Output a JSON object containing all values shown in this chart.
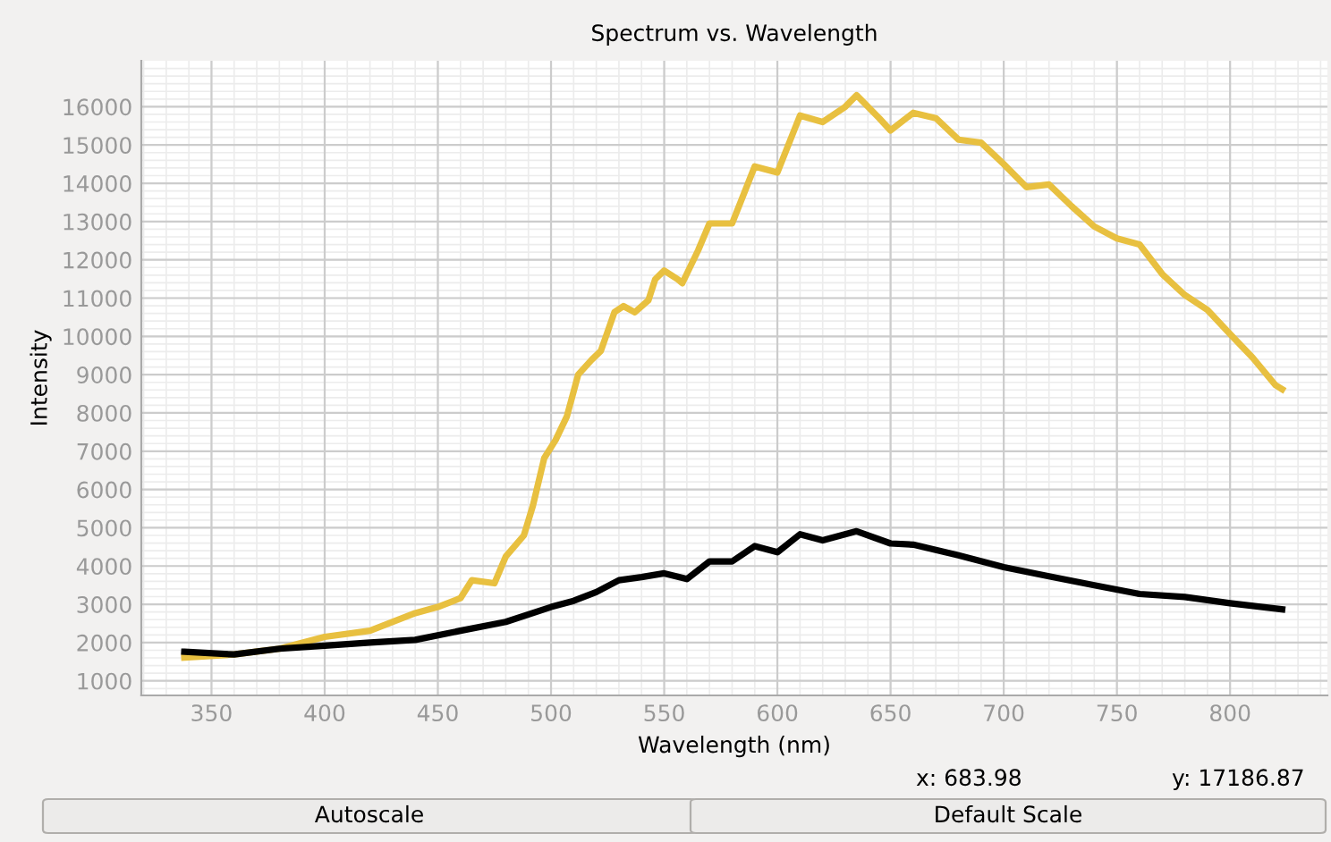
{
  "chart_data": {
    "type": "line",
    "title": "Spectrum vs. Wavelength",
    "xlabel": "Wavelength (nm)",
    "ylabel": "Intensity",
    "xlim": [
      319,
      843
    ],
    "ylim": [
      620,
      17200
    ],
    "xticks": [
      350,
      400,
      450,
      500,
      550,
      600,
      650,
      700,
      750,
      800
    ],
    "yticks": [
      1000,
      2000,
      3000,
      4000,
      5000,
      6000,
      7000,
      8000,
      9000,
      10000,
      11000,
      12000,
      13000,
      14000,
      15000,
      16000
    ],
    "grid": true,
    "legend": false,
    "marker": "none",
    "line_style": "solid",
    "annotations": [
      "x: 683.98",
      "y: 17186.87",
      "Autoscale",
      "Default Scale"
    ],
    "series": [
      {
        "color": "#e8c040",
        "x": [
          338,
          360,
          380,
          400,
          420,
          440,
          450,
          460,
          465,
          475,
          480,
          488,
          492,
          497,
          502,
          507,
          512,
          518,
          522,
          528,
          532,
          537,
          543,
          546,
          550,
          556,
          558,
          565,
          570,
          580,
          590,
          600,
          610,
          620,
          630,
          635,
          645,
          650,
          660,
          670,
          680,
          690,
          700,
          710,
          720,
          730,
          740,
          750,
          760,
          770,
          780,
          790,
          800,
          810,
          820,
          823
        ],
        "values": [
          1610,
          1690,
          1840,
          2150,
          2310,
          2770,
          2930,
          3160,
          3630,
          3550,
          4250,
          4800,
          5580,
          6820,
          7290,
          7910,
          9000,
          9390,
          9620,
          10630,
          10790,
          10630,
          10940,
          11490,
          11720,
          11490,
          11390,
          12250,
          12950,
          12950,
          14440,
          14280,
          15770,
          15600,
          16000,
          16300,
          15700,
          15380,
          15840,
          15700,
          15140,
          15060,
          14500,
          13900,
          13970,
          13400,
          12870,
          12560,
          12400,
          11630,
          11080,
          10690,
          10060,
          9440,
          8730,
          8620
        ]
      },
      {
        "color": "#000000",
        "x": [
          338,
          360,
          380,
          400,
          420,
          440,
          460,
          480,
          500,
          510,
          520,
          530,
          540,
          550,
          560,
          570,
          580,
          590,
          600,
          610,
          620,
          635,
          650,
          660,
          680,
          700,
          720,
          740,
          760,
          780,
          800,
          823
        ],
        "values": [
          1760,
          1690,
          1840,
          1920,
          2000,
          2070,
          2310,
          2540,
          2930,
          3090,
          3320,
          3630,
          3710,
          3810,
          3660,
          4120,
          4120,
          4520,
          4360,
          4830,
          4670,
          4910,
          4590,
          4560,
          4280,
          3970,
          3730,
          3500,
          3270,
          3190,
          3030,
          2870
        ]
      }
    ]
  }
}
